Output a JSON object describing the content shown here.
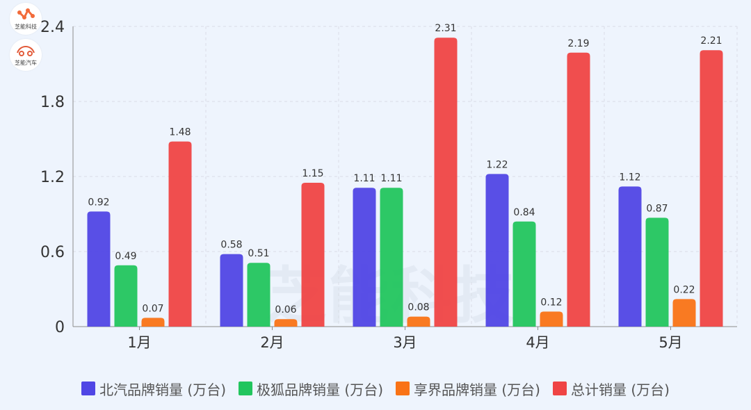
{
  "logos": {
    "top_label": "芝能科技",
    "bottom_label": "芝能汽车"
  },
  "watermark": {
    "text": "芝能科技"
  },
  "colors": {
    "background": "#eef4fd",
    "grid": "#d9dde6",
    "axis": "#8c8c8c",
    "label": "#333333"
  },
  "chart_data": {
    "type": "bar",
    "title": "",
    "xlabel": "",
    "ylabel": "",
    "categories": [
      "1月",
      "2月",
      "3月",
      "4月",
      "5月"
    ],
    "ylim": [
      0,
      2.4
    ],
    "yticks": [
      0,
      0.6,
      1.2,
      1.8,
      2.4
    ],
    "ytick_labels": [
      "0",
      "0.6",
      "1.2",
      "1.8",
      "2.4"
    ],
    "grid": true,
    "legend_position": "bottom",
    "series": [
      {
        "name": "北汽品牌销量 (万台)",
        "color": "#5046e5",
        "values": [
          0.92,
          0.58,
          1.11,
          1.22,
          1.12
        ],
        "labels": [
          "0.92",
          "0.58",
          "1.11",
          "1.22",
          "1.12"
        ]
      },
      {
        "name": "极狐品牌销量 (万台)",
        "color": "#22c55e",
        "values": [
          0.49,
          0.51,
          1.11,
          0.84,
          0.87
        ],
        "labels": [
          "0.49",
          "0.51",
          "1.11",
          "0.84",
          "0.87"
        ]
      },
      {
        "name": "享界品牌销量 (万台)",
        "color": "#f97316",
        "values": [
          0.07,
          0.06,
          0.08,
          0.12,
          0.22
        ],
        "labels": [
          "0.07",
          "0.06",
          "0.08",
          "0.12",
          "0.22"
        ]
      },
      {
        "name": "总计销量 (万台)",
        "color": "#ef4444",
        "values": [
          1.48,
          1.15,
          2.31,
          2.19,
          2.21
        ],
        "labels": [
          "1.48",
          "1.15",
          "2.31",
          "2.19",
          "2.21"
        ]
      }
    ]
  }
}
